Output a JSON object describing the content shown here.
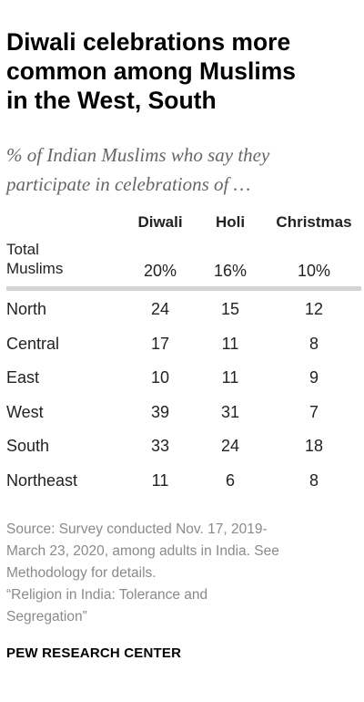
{
  "header": {
    "title_lines": [
      "Diwali celebrations more",
      "common among Muslims",
      "in the West, South"
    ],
    "subtitle_lines": [
      "% of Indian Muslims who say they",
      "participate in celebrations of …"
    ]
  },
  "chart_data": {
    "type": "table",
    "columns": [
      "Diwali",
      "Holi",
      "Christmas"
    ],
    "total": {
      "label_lines": [
        "Total",
        "Muslims"
      ],
      "values": [
        "20%",
        "16%",
        "10%"
      ]
    },
    "rows": [
      {
        "label": "North",
        "values": [
          24,
          15,
          12
        ]
      },
      {
        "label": "Central",
        "values": [
          17,
          11,
          8
        ]
      },
      {
        "label": "East",
        "values": [
          10,
          11,
          9
        ]
      },
      {
        "label": "West",
        "values": [
          39,
          31,
          7
        ]
      },
      {
        "label": "South",
        "values": [
          33,
          24,
          18
        ]
      },
      {
        "label": "Northeast",
        "values": [
          11,
          6,
          8
        ]
      }
    ]
  },
  "notes": {
    "source_lines": [
      "Source: Survey conducted Nov. 17, 2019-",
      "March 23, 2020, among adults in India. See",
      "Methodology for details.",
      "“Religion in India: Tolerance and",
      "Segregation”"
    ]
  },
  "footer": {
    "brand": "PEW RESEARCH CENTER"
  }
}
